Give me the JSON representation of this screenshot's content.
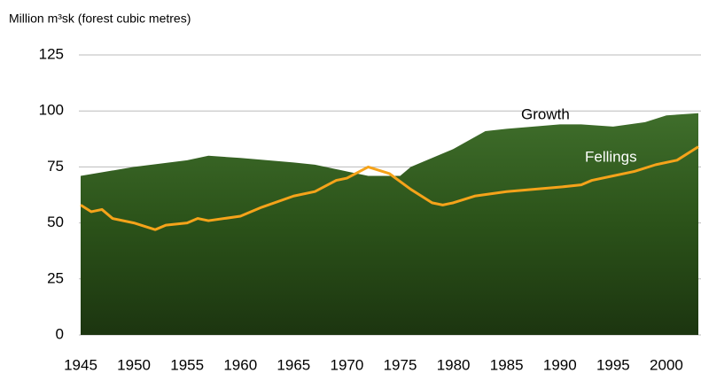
{
  "chart_data": {
    "type": "area-line",
    "y_label": "Million m³sk (forest cubic metres)",
    "xlim": [
      1945,
      2003
    ],
    "xticks": [
      1945,
      1950,
      1955,
      1960,
      1965,
      1970,
      1975,
      1980,
      1985,
      1990,
      1995,
      2000
    ],
    "ylim": [
      0,
      125
    ],
    "yticks": [
      0,
      25,
      50,
      75,
      100,
      125
    ],
    "grid": true,
    "series": [
      {
        "name": "Growth",
        "kind": "area",
        "color": "#2f5a1f",
        "x": [
          1945,
          1950,
          1955,
          1957,
          1960,
          1965,
          1967,
          1970,
          1972,
          1975,
          1976,
          1980,
          1983,
          1985,
          1990,
          1992,
          1995,
          1998,
          2000,
          2003
        ],
        "values": [
          71,
          75,
          78,
          80,
          79,
          77,
          76,
          73,
          71,
          71,
          75,
          83,
          91,
          92,
          94,
          94,
          93,
          95,
          98,
          99
        ]
      },
      {
        "name": "Fellings",
        "kind": "line",
        "color": "#f5a31a",
        "x": [
          1945,
          1946,
          1947,
          1948,
          1950,
          1952,
          1953,
          1955,
          1956,
          1957,
          1960,
          1962,
          1965,
          1967,
          1969,
          1970,
          1972,
          1974,
          1976,
          1978,
          1979,
          1980,
          1982,
          1985,
          1990,
          1992,
          1993,
          1995,
          1997,
          1999,
          2001,
          2003
        ],
        "values": [
          58,
          55,
          56,
          52,
          50,
          47,
          49,
          50,
          52,
          51,
          53,
          57,
          62,
          64,
          69,
          70,
          75,
          72,
          65,
          59,
          58,
          59,
          62,
          64,
          66,
          67,
          69,
          71,
          73,
          76,
          78,
          84
        ]
      }
    ]
  }
}
